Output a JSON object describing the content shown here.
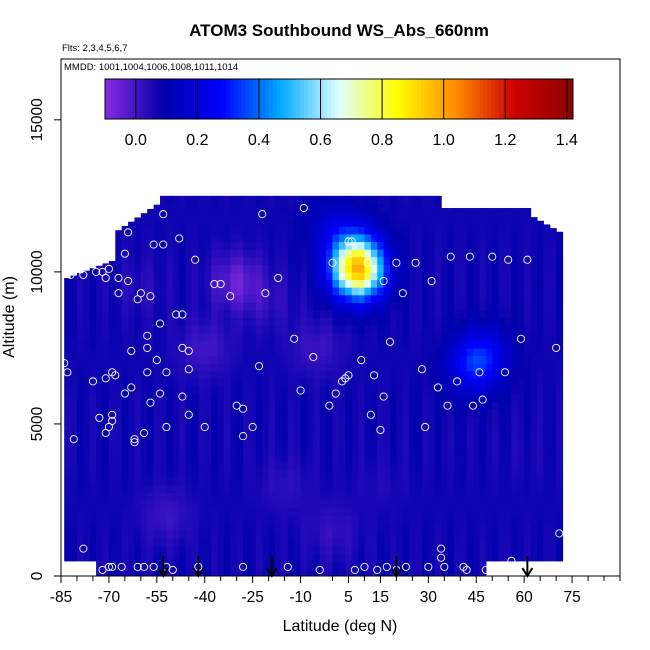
{
  "chart_data": {
    "type": "heatmap",
    "title": "ATOM3 Southbound WS_Abs_660nm",
    "flights_note": "Flts: 2,3,4,5,6,7",
    "dates_note": "MMDD: 1001,1004,1006,1008,1011,1014",
    "xlabel": "Latitude (deg N)",
    "ylabel": "Altitude (m)",
    "xlim": [
      -85,
      90
    ],
    "ylim": [
      0,
      17000
    ],
    "x_ticks": [
      -85,
      -70,
      -55,
      -40,
      -25,
      -10,
      5,
      15,
      30,
      45,
      60,
      75
    ],
    "x_minor_ticks": [
      -80,
      -75,
      -65,
      -60,
      -50,
      -45,
      -35,
      -30,
      -20,
      -15,
      0,
      10,
      20,
      25,
      35,
      40,
      50,
      55,
      65,
      70,
      80,
      85,
      90
    ],
    "y_ticks": [
      0,
      5000,
      10000,
      15000
    ],
    "colorbar": {
      "min": -0.1,
      "max": 1.42,
      "ticks": [
        0.0,
        0.2,
        0.4,
        0.6,
        0.8,
        1.0,
        1.2,
        1.4
      ],
      "tick_labels": [
        "0.0",
        "0.2",
        "0.4",
        "0.6",
        "0.8",
        "1.0",
        "1.2",
        "1.4"
      ],
      "palette": [
        "#8a2be2",
        "#0000aa",
        "#0000ff",
        "#00aaff",
        "#e0ffff",
        "#ffff00",
        "#ff8c00",
        "#cc0000",
        "#8b0000"
      ]
    },
    "field": {
      "x_range": [
        -84,
        71
      ],
      "y_range": [
        0,
        12500
      ],
      "x_step": 2,
      "y_step": 250,
      "background_value": 0.07,
      "features": [
        {
          "type": "plume",
          "x": 0,
          "y": 11500,
          "value": 0.16
        },
        {
          "type": "plume",
          "x": 7,
          "y": 10700,
          "value": 0.34
        },
        {
          "type": "plume",
          "x": 8,
          "y": 10000,
          "value": 0.82
        },
        {
          "type": "plume",
          "x": 44,
          "y": 6900,
          "value": 0.27
        },
        {
          "type": "plume",
          "x": 48,
          "y": 7400,
          "value": 0.2
        },
        {
          "type": "plume",
          "x": -30,
          "y": 9700,
          "value": -0.05
        },
        {
          "type": "plume",
          "x": -60,
          "y": 9500,
          "value": 0.04
        },
        {
          "type": "plume",
          "x": -52,
          "y": 2000,
          "value": 0.01
        },
        {
          "type": "plume",
          "x": -40,
          "y": 7500,
          "value": 0.0
        },
        {
          "type": "plume",
          "x": -20,
          "y": 9000,
          "value": 0.03
        },
        {
          "type": "plume",
          "x": -5,
          "y": 7500,
          "value": 0.01
        },
        {
          "type": "plume",
          "x": 0,
          "y": 1500,
          "value": 0.02
        },
        {
          "type": "plume",
          "x": -15,
          "y": 3000,
          "value": 0.03
        },
        {
          "type": "plume",
          "x": 15,
          "y": 3000,
          "value": 0.05
        },
        {
          "type": "plume",
          "x": 60,
          "y": 4000,
          "value": 0.06
        }
      ]
    },
    "observation_points": [
      [
        -84,
        7000
      ],
      [
        -83,
        6700
      ],
      [
        -82,
        9900
      ],
      [
        -81,
        4500
      ],
      [
        -78,
        9900
      ],
      [
        -78,
        900
      ],
      [
        -75,
        6400
      ],
      [
        -74,
        10000
      ],
      [
        -73,
        5200
      ],
      [
        -72,
        10000
      ],
      [
        -72,
        200
      ],
      [
        -71,
        4700
      ],
      [
        -71,
        6500
      ],
      [
        -71,
        9800
      ],
      [
        -70,
        300
      ],
      [
        -70,
        10100
      ],
      [
        -70,
        4900
      ],
      [
        -69,
        6700
      ],
      [
        -69,
        5100
      ],
      [
        -69,
        5300
      ],
      [
        -69,
        300
      ],
      [
        -68,
        6600
      ],
      [
        -67,
        9300
      ],
      [
        -67,
        9800
      ],
      [
        -66,
        300
      ],
      [
        -65,
        6000
      ],
      [
        -65,
        10600
      ],
      [
        -64,
        9700
      ],
      [
        -64,
        11300
      ],
      [
        -63,
        6200
      ],
      [
        -63,
        7400
      ],
      [
        -62,
        4500
      ],
      [
        -62,
        4400
      ],
      [
        -61,
        9100
      ],
      [
        -61,
        300
      ],
      [
        -60,
        9300
      ],
      [
        -59,
        4700
      ],
      [
        -59,
        300
      ],
      [
        -58,
        7500
      ],
      [
        -58,
        6700
      ],
      [
        -58,
        7900
      ],
      [
        -57,
        9200
      ],
      [
        -57,
        5700
      ],
      [
        -56,
        300
      ],
      [
        -56,
        10900
      ],
      [
        -55,
        7100
      ],
      [
        -54,
        8300
      ],
      [
        -54,
        6000
      ],
      [
        -53,
        10900
      ],
      [
        -53,
        11900
      ],
      [
        -52,
        300
      ],
      [
        -52,
        4900
      ],
      [
        -52,
        6700
      ],
      [
        -50,
        200
      ],
      [
        -49,
        8600
      ],
      [
        -48,
        11100
      ],
      [
        -47,
        7500
      ],
      [
        -47,
        5900
      ],
      [
        -47,
        8600
      ],
      [
        -45,
        6800
      ],
      [
        -45,
        7400
      ],
      [
        -45,
        5300
      ],
      [
        -43,
        10400
      ],
      [
        -42,
        300
      ],
      [
        -40,
        4900
      ],
      [
        -37,
        9600
      ],
      [
        -35,
        9600
      ],
      [
        -32,
        9200
      ],
      [
        -30,
        5600
      ],
      [
        -28,
        4600
      ],
      [
        -28,
        300
      ],
      [
        -28,
        5500
      ],
      [
        -25,
        4900
      ],
      [
        -23,
        6900
      ],
      [
        -22,
        11900
      ],
      [
        -21,
        9300
      ],
      [
        -17,
        9800
      ],
      [
        -14,
        300
      ],
      [
        -12,
        7800
      ],
      [
        -10,
        6100
      ],
      [
        -9,
        12100
      ],
      [
        -6,
        7200
      ],
      [
        -4,
        200
      ],
      [
        -1,
        5600
      ],
      [
        0,
        10300
      ],
      [
        1,
        6000
      ],
      [
        3,
        6400
      ],
      [
        4,
        6500
      ],
      [
        5,
        11000
      ],
      [
        5,
        6600
      ],
      [
        6,
        11000
      ],
      [
        7,
        200
      ],
      [
        9,
        7100
      ],
      [
        10,
        300
      ],
      [
        11,
        10300
      ],
      [
        12,
        5300
      ],
      [
        13,
        6600
      ],
      [
        14,
        200
      ],
      [
        15,
        4800
      ],
      [
        16,
        9700
      ],
      [
        16,
        5900
      ],
      [
        17,
        300
      ],
      [
        18,
        7700
      ],
      [
        20,
        200
      ],
      [
        20,
        10300
      ],
      [
        22,
        9300
      ],
      [
        23,
        300
      ],
      [
        26,
        10300
      ],
      [
        28,
        6800
      ],
      [
        29,
        4900
      ],
      [
        30,
        300
      ],
      [
        31,
        9700
      ],
      [
        33,
        6200
      ],
      [
        34,
        900
      ],
      [
        34,
        600
      ],
      [
        35,
        300
      ],
      [
        36,
        5600
      ],
      [
        37,
        10500
      ],
      [
        39,
        6400
      ],
      [
        41,
        300
      ],
      [
        42,
        200
      ],
      [
        43,
        10500
      ],
      [
        44,
        5600
      ],
      [
        46,
        6700
      ],
      [
        47,
        5800
      ],
      [
        48,
        200
      ],
      [
        50,
        10500
      ],
      [
        54,
        6700
      ],
      [
        55,
        10400
      ],
      [
        56,
        500
      ],
      [
        59,
        7800
      ],
      [
        61,
        10400
      ],
      [
        66,
        12000
      ],
      [
        67,
        11900
      ],
      [
        69,
        12000
      ],
      [
        70,
        7500
      ],
      [
        71,
        1400
      ]
    ],
    "flight_markers_lat": [
      -53,
      -42,
      -19,
      20,
      61
    ],
    "colors": {
      "point_stroke": "#ffffff",
      "axis": "#000000",
      "arrow": "#000000"
    }
  }
}
